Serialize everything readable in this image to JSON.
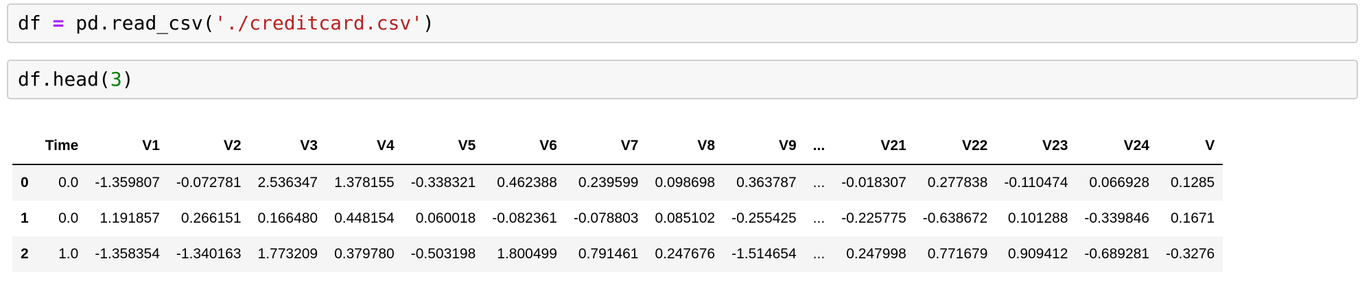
{
  "notebook": {
    "cells": [
      {
        "name": "code-cell-1",
        "source_text": "df = pd.read_csv('./creditcard.csv')",
        "tokens": [
          {
            "text": "df ",
            "type": "plain"
          },
          {
            "text": "=",
            "type": "operator"
          },
          {
            "text": " pd.read_csv(",
            "type": "plain"
          },
          {
            "text": "'./creditcard.csv'",
            "type": "string"
          },
          {
            "text": ")",
            "type": "plain"
          }
        ]
      },
      {
        "name": "code-cell-2",
        "source_text": "df.head(3)",
        "tokens": [
          {
            "text": "df.head(",
            "type": "plain"
          },
          {
            "text": "3",
            "type": "number"
          },
          {
            "text": ")",
            "type": "plain"
          }
        ]
      }
    ]
  },
  "table": {
    "corner_header": "",
    "columns": [
      "Time",
      "V1",
      "V2",
      "V3",
      "V4",
      "V5",
      "V6",
      "V7",
      "V8",
      "V9",
      "...",
      "V21",
      "V22",
      "V23",
      "V24",
      "V"
    ],
    "index_values": [
      "0",
      "1",
      "2"
    ],
    "rows": [
      [
        "0.0",
        "-1.359807",
        "-0.072781",
        "2.536347",
        "1.378155",
        "-0.338321",
        "0.462388",
        "0.239599",
        "0.098698",
        "0.363787",
        "...",
        "-0.018307",
        "0.277838",
        "-0.110474",
        "0.066928",
        "0.1285"
      ],
      [
        "0.0",
        "1.191857",
        "0.266151",
        "0.166480",
        "0.448154",
        "0.060018",
        "-0.082361",
        "-0.078803",
        "0.085102",
        "-0.255425",
        "...",
        "-0.225775",
        "-0.638672",
        "0.101288",
        "-0.339846",
        "0.1671"
      ],
      [
        "1.0",
        "-1.358354",
        "-1.340163",
        "1.773209",
        "0.379780",
        "-0.503198",
        "1.800499",
        "0.791461",
        "0.247676",
        "-1.514654",
        "...",
        "0.247998",
        "0.771679",
        "0.909412",
        "-0.689281",
        "-0.3276"
      ]
    ]
  },
  "colors": {
    "operator": "#AA22FF",
    "string": "#BA2121",
    "number": "#008000",
    "cell_background": "#f7f7f7",
    "cell_border": "#cfcfcf",
    "row_stripe": "#f5f5f5",
    "header_rule": "#000000"
  }
}
